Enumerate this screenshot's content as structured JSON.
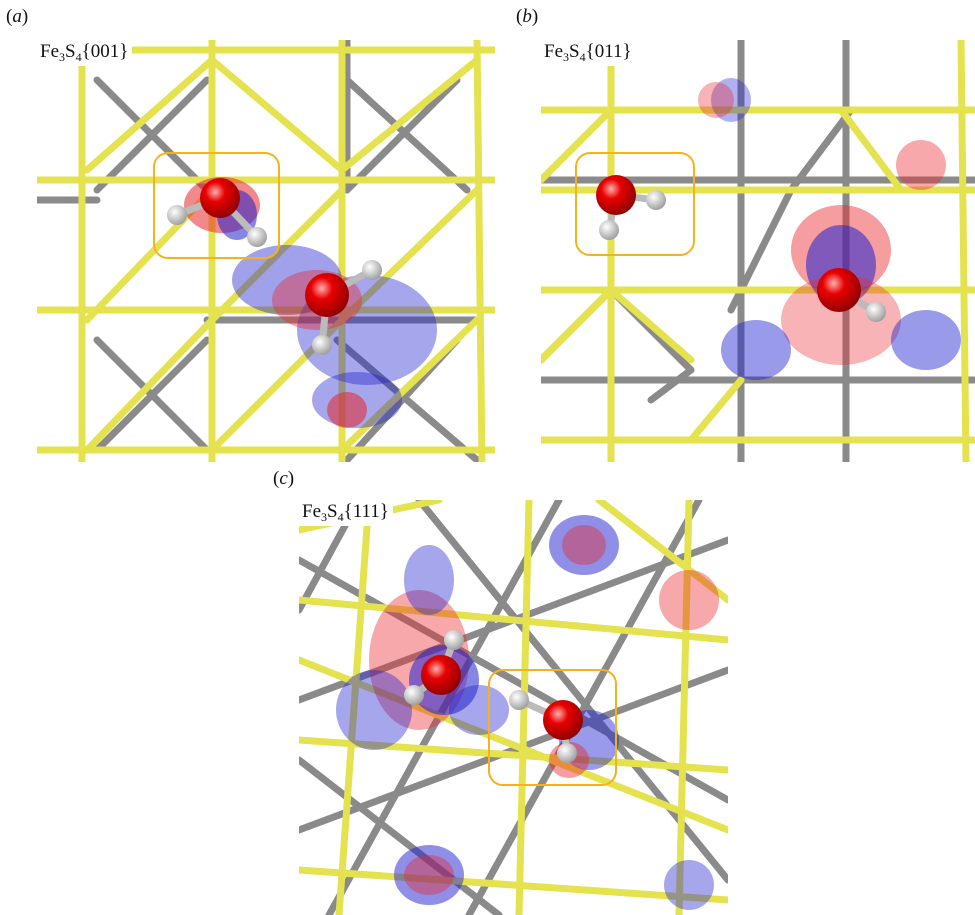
{
  "panels": [
    {
      "letter": "a",
      "label": {
        "formula": "Fe",
        "sub1": "3",
        "mid": "S",
        "sub2": "4",
        "facet": "{001}"
      },
      "colors": {
        "fe": "#8a8a8a",
        "s": "#e4e24f",
        "o": "#e00000",
        "h": "#e4e4e4",
        "highlight": "#f5b21a"
      }
    },
    {
      "letter": "b",
      "label": {
        "formula": "Fe",
        "sub1": "3",
        "mid": "S",
        "sub2": "4",
        "facet": "{011}"
      },
      "colors": {
        "fe": "#8a8a8a",
        "s": "#e4e24f",
        "o": "#e00000",
        "h": "#e4e4e4",
        "highlight": "#f5b21a"
      }
    },
    {
      "letter": "c",
      "label": {
        "formula": "Fe",
        "sub1": "3",
        "mid": "S",
        "sub2": "4",
        "facet": "{111}"
      },
      "colors": {
        "fe": "#8a8a8a",
        "s": "#e4e24f",
        "o": "#e00000",
        "h": "#e4e4e4",
        "highlight": "#f5b21a"
      }
    }
  ],
  "legend_colors": {
    "charge_accumulation": "#e8262a",
    "charge_depletion": "#2020d0"
  }
}
